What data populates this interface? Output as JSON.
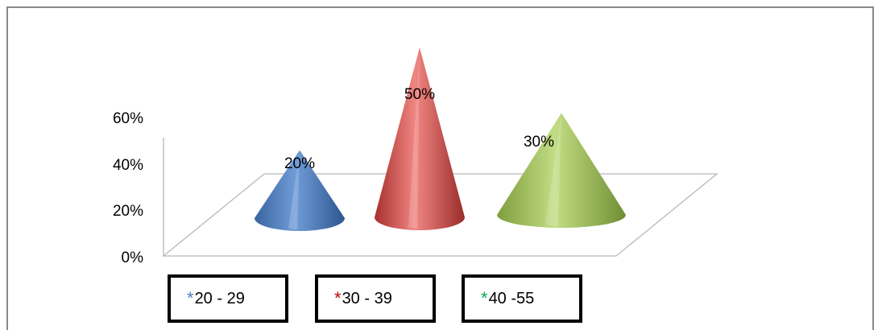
{
  "chart_data": {
    "type": "bar",
    "subtype": "3d-cone",
    "categories": [
      "20 - 29",
      "30 - 39",
      "40 -55"
    ],
    "values": [
      20,
      50,
      30
    ],
    "data_labels": [
      "20%",
      "50%",
      "30%"
    ],
    "ylim": [
      0,
      60
    ],
    "y_ticks": [
      "0%",
      "20%",
      "40%",
      "60%"
    ],
    "grid": false,
    "legend": {
      "placement": "bottom",
      "marker": "*",
      "items": [
        {
          "label": "20 - 29",
          "color": "#4f81bd"
        },
        {
          "label": "30 - 39",
          "color": "#c0504d"
        },
        {
          "label": "40 -55",
          "color": "#9bbb59"
        }
      ]
    },
    "colors": [
      "#4f81bd",
      "#c0504d",
      "#9bbb59"
    ]
  }
}
